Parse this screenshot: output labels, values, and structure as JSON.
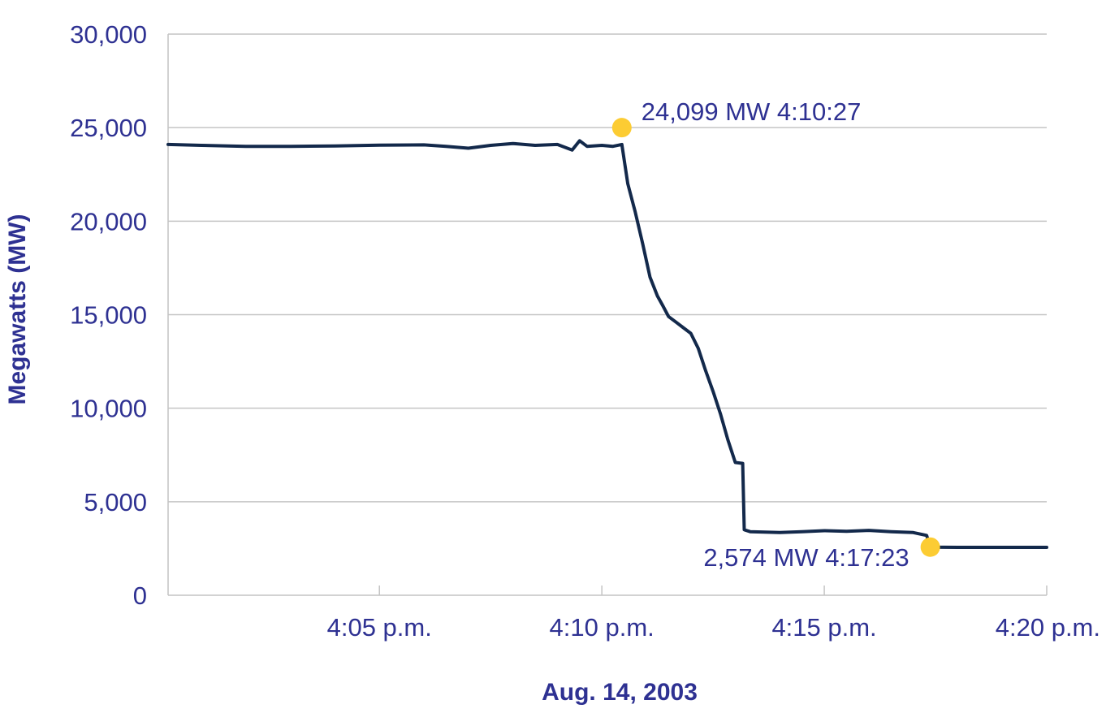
{
  "chart_data": {
    "type": "line",
    "title": "",
    "xlabel": "Aug. 14, 2003",
    "ylabel": "Megawatts (MW)",
    "ylim": [
      0,
      30000
    ],
    "xlim": [
      "4:00:15",
      "4:20:00"
    ],
    "y_ticks": [
      0,
      5000,
      10000,
      15000,
      20000,
      25000,
      30000
    ],
    "y_tick_labels": [
      "0",
      "5,000",
      "10,000",
      "15,000",
      "20,000",
      "25,000",
      "30,000"
    ],
    "x_ticks": [
      "4:05:00",
      "4:10:00",
      "4:15:00",
      "4:20:00"
    ],
    "x_tick_labels": [
      "4:05 p.m.",
      "4:10 p.m.",
      "4:15 p.m.",
      "4:20 p.m."
    ],
    "grid": "horizontal",
    "colors": {
      "line": "#13294b",
      "marker": "#fccc33",
      "text": "#2e3192",
      "grid": "#c4c4c4"
    },
    "series": [
      {
        "x": [
          "4:00:15",
          "4:01:00",
          "4:02:00",
          "4:03:00",
          "4:04:00",
          "4:05:00",
          "4:06:00",
          "4:06:30",
          "4:07:00",
          "4:07:30",
          "4:08:00",
          "4:08:30",
          "4:09:00",
          "4:09:20",
          "4:09:30",
          "4:09:40",
          "4:10:00",
          "4:10:15",
          "4:10:27",
          "4:10:35",
          "4:10:45",
          "4:10:55",
          "4:11:05",
          "4:11:15",
          "4:11:22",
          "4:11:30",
          "4:11:40",
          "4:11:50",
          "4:12:00",
          "4:12:10",
          "4:12:20",
          "4:12:30",
          "4:12:40",
          "4:12:50",
          "4:13:00",
          "4:13:10",
          "4:13:12",
          "4:13:20",
          "4:14:00",
          "4:14:30",
          "4:15:00",
          "4:15:30",
          "4:16:00",
          "4:16:30",
          "4:17:00",
          "4:17:18",
          "4:17:23",
          "4:18:00",
          "4:19:00",
          "4:20:00"
        ],
        "y": [
          24100,
          24050,
          24000,
          24000,
          24020,
          24060,
          24080,
          24000,
          23900,
          24050,
          24150,
          24050,
          24100,
          23800,
          24300,
          24000,
          24050,
          24000,
          24099,
          22000,
          20500,
          18800,
          17000,
          16000,
          15500,
          14900,
          14600,
          14300,
          14000,
          13200,
          12000,
          10900,
          9700,
          8300,
          7100,
          7050,
          3500,
          3400,
          3350,
          3400,
          3450,
          3420,
          3470,
          3400,
          3350,
          3200,
          2574,
          2560,
          2560,
          2560
        ]
      }
    ],
    "annotations": [
      {
        "x": "4:10:27",
        "y": 24099,
        "label": "24,099 MW 4:10:27"
      },
      {
        "x": "4:17:23",
        "y": 2574,
        "label": "2,574  MW 4:17:23"
      }
    ]
  }
}
